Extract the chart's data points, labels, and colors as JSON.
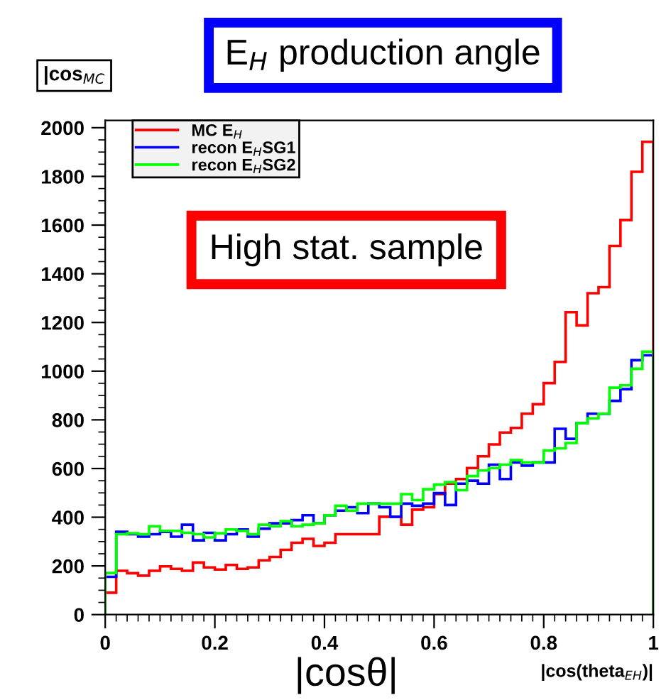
{
  "chart_data": {
    "type": "histogram",
    "title": "|cos$_{MC}$",
    "xlabel": "|cos(theta$_{EH}$)|",
    "annotations": [
      "E$_{H}$ production angle",
      "High stat. sample",
      "|cosθ|"
    ],
    "bins": [
      0,
      0.02,
      0.04,
      0.06,
      0.08,
      0.1,
      0.12,
      0.14,
      0.16,
      0.18,
      0.2,
      0.22,
      0.24,
      0.26,
      0.28,
      0.3,
      0.32,
      0.34,
      0.36,
      0.38,
      0.4,
      0.42,
      0.44,
      0.46,
      0.48,
      0.5,
      0.52,
      0.54,
      0.56,
      0.58,
      0.6,
      0.62,
      0.64,
      0.66,
      0.68,
      0.7,
      0.72,
      0.74,
      0.76,
      0.78,
      0.8,
      0.82,
      0.84,
      0.86,
      0.88,
      0.9,
      0.92,
      0.94,
      0.96,
      0.98,
      1
    ],
    "series": [
      {
        "name": "MC E$_{H}$",
        "color": "#ff0000",
        "values": [
          90,
          180,
          170,
          160,
          180,
          198,
          188,
          180,
          214,
          194,
          185,
          204,
          188,
          194,
          223,
          237,
          266,
          295,
          311,
          282,
          295,
          330,
          330,
          330,
          330,
          402,
          402,
          369,
          431,
          441,
          495,
          538,
          557,
          602,
          650,
          699,
          748,
          767,
          825,
          864,
          951,
          1038,
          1242,
          1188,
          1320,
          1345,
          1514,
          1621,
          1819,
          1942
        ]
      },
      {
        "name": "recon E$_{H}$SG1",
        "color": "#0000ff",
        "values": [
          155,
          340,
          330,
          320,
          330,
          340,
          320,
          369,
          305,
          336,
          305,
          330,
          350,
          320,
          353,
          375,
          375,
          388,
          408,
          375,
          408,
          427,
          441,
          417,
          456,
          441,
          402,
          456,
          447,
          456,
          499,
          450,
          538,
          550,
          538,
          616,
          557,
          625,
          612,
          625,
          625,
          763,
          722,
          786,
          825,
          825,
          878,
          926,
          1045,
          1065
        ]
      },
      {
        "name": "recon E$_{H}$SG2",
        "color": "#00ff00",
        "values": [
          171,
          330,
          334,
          330,
          363,
          344,
          344,
          336,
          330,
          317,
          334,
          350,
          344,
          330,
          369,
          363,
          384,
          363,
          369,
          375,
          408,
          447,
          427,
          456,
          456,
          456,
          456,
          495,
          470,
          515,
          534,
          544,
          511,
          569,
          592,
          602,
          616,
          635,
          625,
          625,
          674,
          683,
          705,
          786,
          806,
          825,
          932,
          942,
          1010,
          1080
        ]
      }
    ],
    "xlim": [
      0,
      1
    ],
    "ylim": [
      0,
      2030
    ],
    "xticks": [
      0,
      0.2,
      0.4,
      0.6,
      0.8,
      1
    ],
    "yticks": [
      0,
      200,
      400,
      600,
      800,
      1000,
      1200,
      1400,
      1600,
      1800,
      2000
    ],
    "legend": "top left",
    "grid": false
  }
}
